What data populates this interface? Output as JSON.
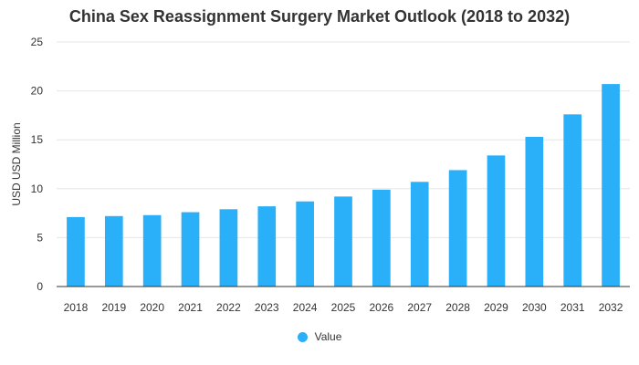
{
  "colors": {
    "bar": "#2ab0f8",
    "grid": "#e6e6e6",
    "axis": "#333333",
    "text": "#333333"
  },
  "chart_data": {
    "type": "bar",
    "title": "China Sex Reassignment Surgery Market Outlook (2018 to 2032)",
    "xlabel": "",
    "ylabel": "USD USD Million",
    "ylim": [
      0,
      25
    ],
    "yticks": [
      0,
      5,
      10,
      15,
      20,
      25
    ],
    "grid": true,
    "legend_position": "bottom-center",
    "categories": [
      "2018",
      "2019",
      "2020",
      "2021",
      "2022",
      "2023",
      "2024",
      "2025",
      "2026",
      "2027",
      "2028",
      "2029",
      "2030",
      "2031",
      "2032"
    ],
    "series": [
      {
        "name": "Value",
        "values": [
          7.1,
          7.2,
          7.3,
          7.6,
          7.9,
          8.2,
          8.7,
          9.2,
          9.9,
          10.7,
          11.9,
          13.4,
          15.3,
          17.6,
          20.7
        ]
      }
    ]
  }
}
